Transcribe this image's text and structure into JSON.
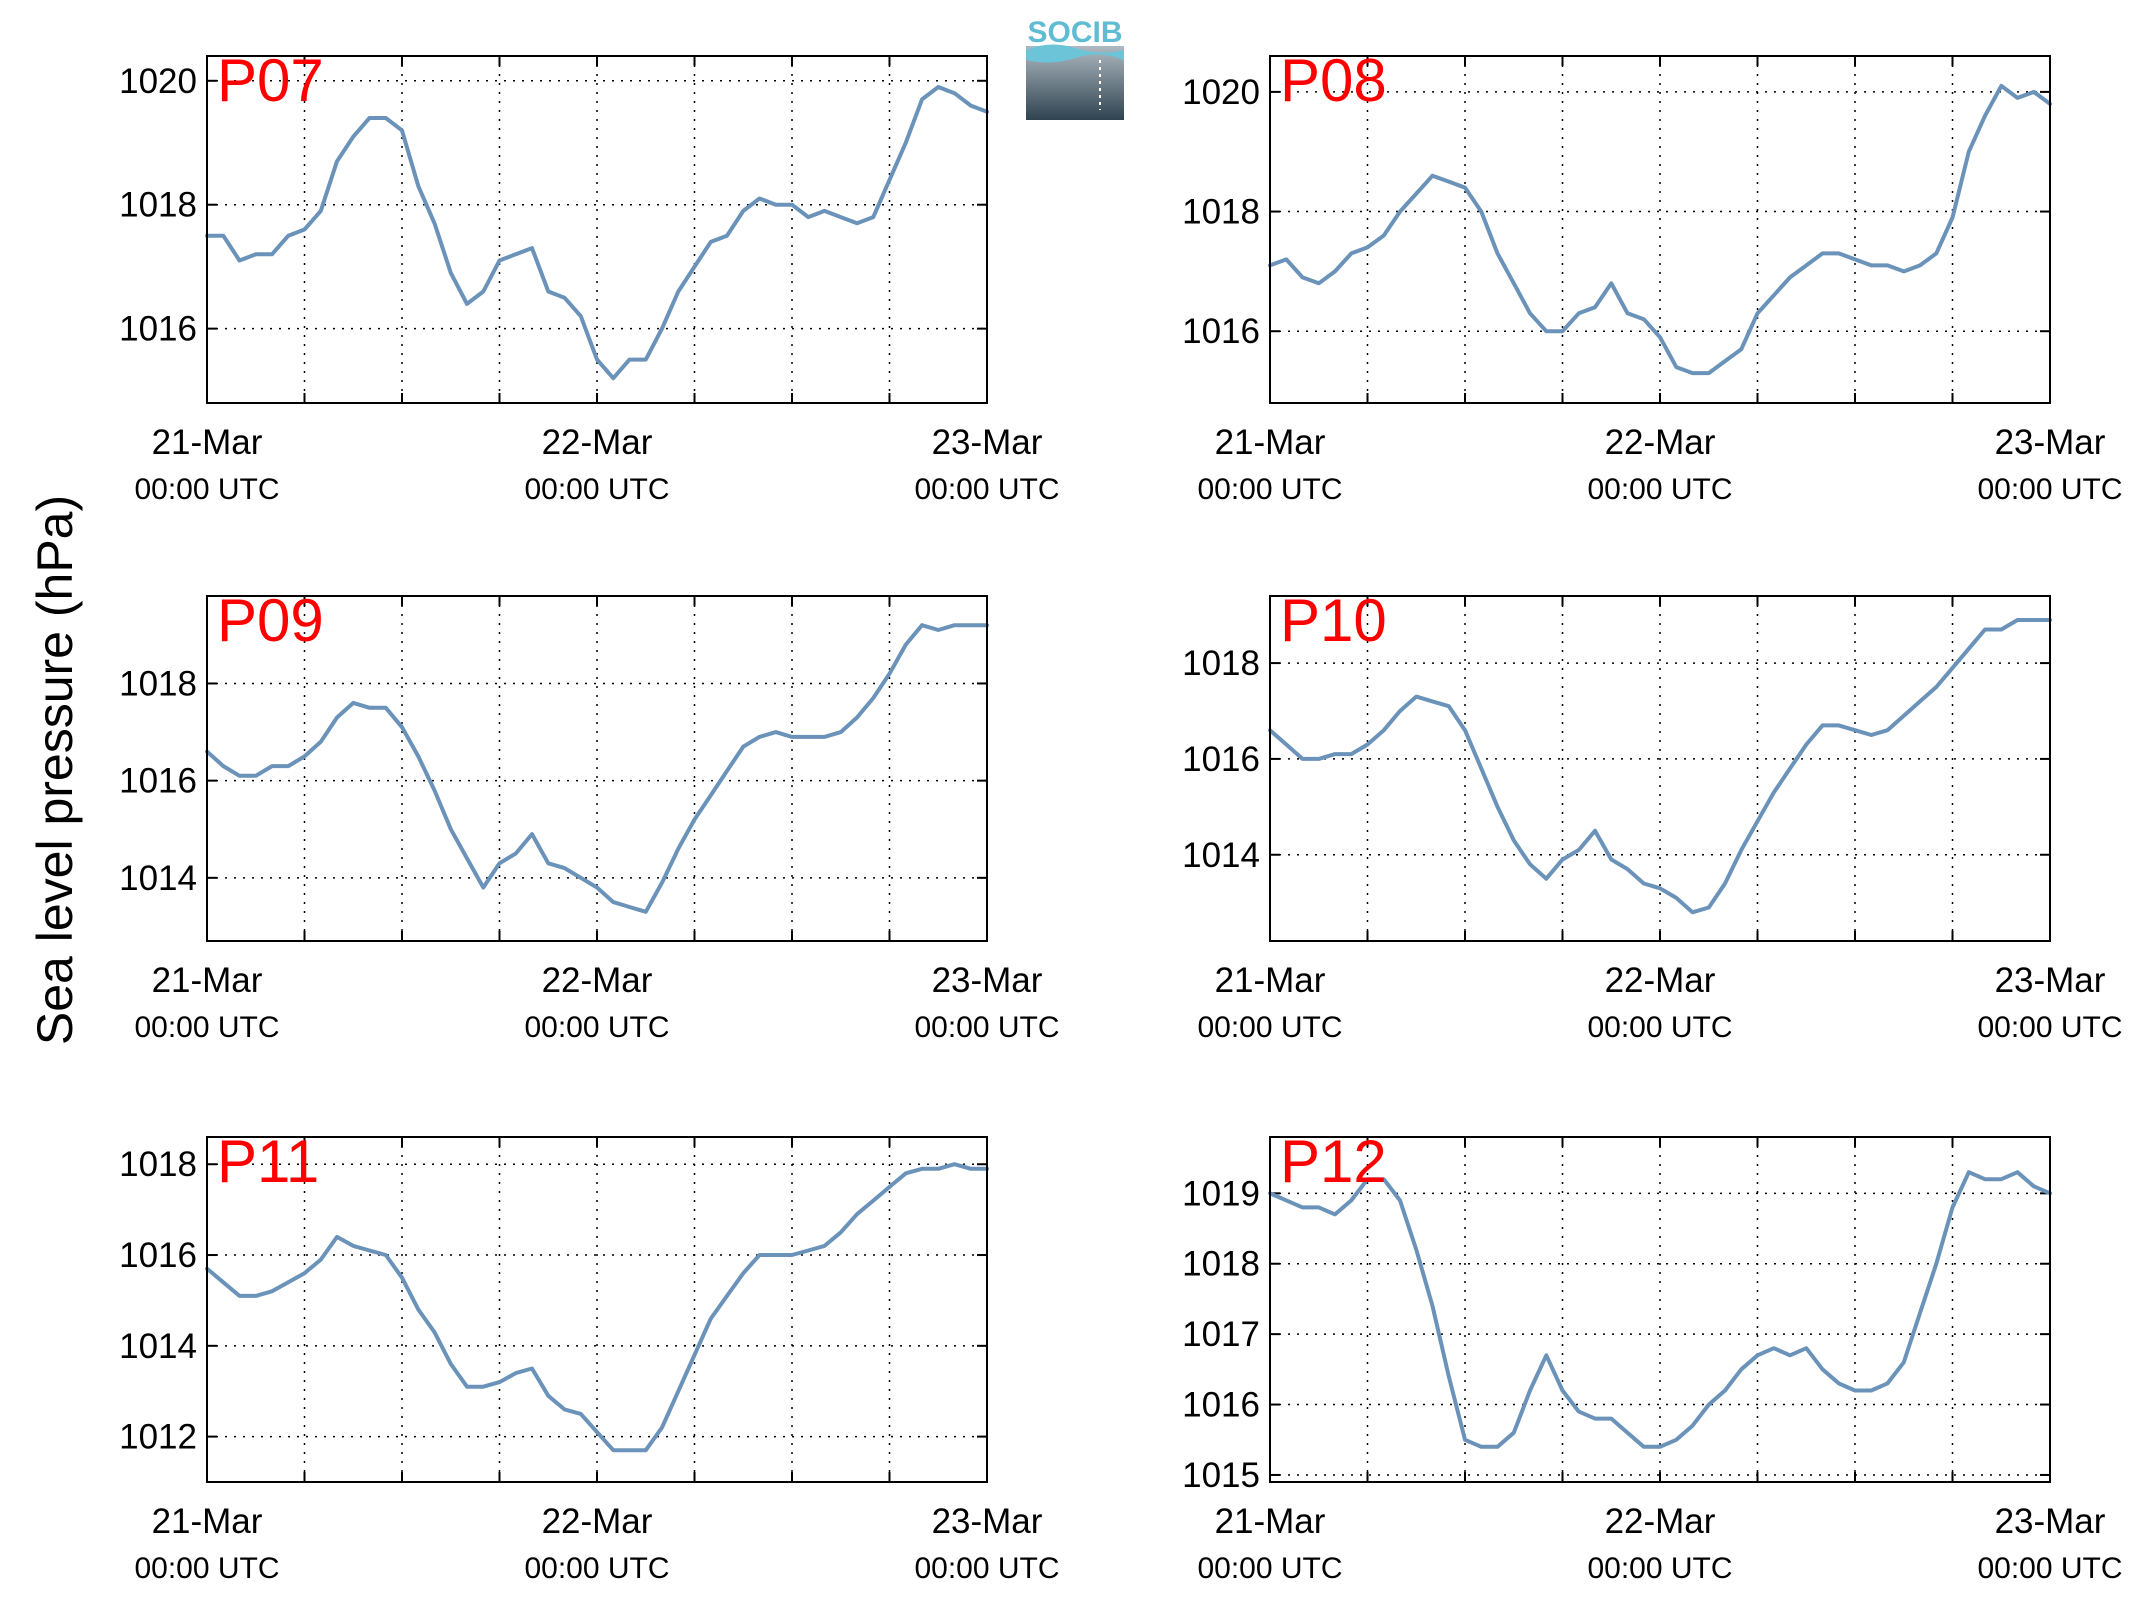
{
  "ylabel": "Sea level pressure (hPa)",
  "logo": {
    "text": "SOCIB"
  },
  "colors": {
    "line": "#6b93b9",
    "station_label": "#ff0000"
  },
  "chart_data": [
    {
      "type": "line",
      "station": "P07",
      "xlabel": "",
      "ylabel": "",
      "x_range": [
        "2020-03-21T00:00",
        "2020-03-23T00:00"
      ],
      "x_ticks": [
        {
          "date": "21-Mar",
          "time": "00:00 UTC"
        },
        {
          "date": "22-Mar",
          "time": "00:00 UTC"
        },
        {
          "date": "23-Mar",
          "time": "00:00 UTC"
        }
      ],
      "ylim": [
        1014.8,
        1020.4
      ],
      "yticks": [
        1016,
        1018,
        1020
      ],
      "grid": true,
      "series": [
        {
          "x_hours": [
            0,
            1,
            2,
            3,
            4,
            5,
            6,
            7,
            8,
            9,
            10,
            11,
            12,
            13,
            14,
            15,
            16,
            17,
            18,
            19,
            20,
            21,
            22,
            23,
            24,
            25,
            26,
            27,
            28,
            29,
            30,
            31,
            32,
            33,
            34,
            35,
            36,
            37,
            38,
            39,
            40,
            41,
            42,
            43,
            44,
            45,
            46,
            47,
            48
          ],
          "values": [
            1017.5,
            1017.5,
            1017.1,
            1017.2,
            1017.2,
            1017.5,
            1017.6,
            1017.9,
            1018.7,
            1019.1,
            1019.4,
            1019.4,
            1019.2,
            1018.3,
            1017.7,
            1016.9,
            1016.4,
            1016.6,
            1017.1,
            1017.2,
            1017.3,
            1016.6,
            1016.5,
            1016.2,
            1015.5,
            1015.2,
            1015.5,
            1015.5,
            1016.0,
            1016.6,
            1017.0,
            1017.4,
            1017.5,
            1017.9,
            1018.1,
            1018.0,
            1018.0,
            1017.8,
            1017.9,
            1017.8,
            1017.7,
            1017.8,
            1018.4,
            1019.0,
            1019.7,
            1019.9,
            1019.8,
            1019.6,
            1019.5
          ]
        }
      ]
    },
    {
      "type": "line",
      "station": "P08",
      "xlabel": "",
      "ylabel": "",
      "x_range": [
        "2020-03-21T00:00",
        "2020-03-23T00:00"
      ],
      "x_ticks": [
        {
          "date": "21-Mar",
          "time": "00:00 UTC"
        },
        {
          "date": "22-Mar",
          "time": "00:00 UTC"
        },
        {
          "date": "23-Mar",
          "time": "00:00 UTC"
        }
      ],
      "ylim": [
        1014.8,
        1020.6
      ],
      "yticks": [
        1016,
        1018,
        1020
      ],
      "grid": true,
      "series": [
        {
          "x_hours": [
            0,
            1,
            2,
            3,
            4,
            5,
            6,
            7,
            8,
            9,
            10,
            11,
            12,
            13,
            14,
            15,
            16,
            17,
            18,
            19,
            20,
            21,
            22,
            23,
            24,
            25,
            26,
            27,
            28,
            29,
            30,
            31,
            32,
            33,
            34,
            35,
            36,
            37,
            38,
            39,
            40,
            41,
            42,
            43,
            44,
            45,
            46,
            47,
            48
          ],
          "values": [
            1017.1,
            1017.2,
            1016.9,
            1016.8,
            1017.0,
            1017.3,
            1017.4,
            1017.6,
            1018.0,
            1018.3,
            1018.6,
            1018.5,
            1018.4,
            1018.0,
            1017.3,
            1016.8,
            1016.3,
            1016.0,
            1016.0,
            1016.3,
            1016.4,
            1016.8,
            1016.3,
            1016.2,
            1015.9,
            1015.4,
            1015.3,
            1015.3,
            1015.5,
            1015.7,
            1016.3,
            1016.6,
            1016.9,
            1017.1,
            1017.3,
            1017.3,
            1017.2,
            1017.1,
            1017.1,
            1017.0,
            1017.1,
            1017.3,
            1017.9,
            1019.0,
            1019.6,
            1020.1,
            1019.9,
            1020.0,
            1019.8
          ]
        }
      ]
    },
    {
      "type": "line",
      "station": "P09",
      "xlabel": "",
      "ylabel": "",
      "x_range": [
        "2020-03-21T00:00",
        "2020-03-23T00:00"
      ],
      "x_ticks": [
        {
          "date": "21-Mar",
          "time": "00:00 UTC"
        },
        {
          "date": "22-Mar",
          "time": "00:00 UTC"
        },
        {
          "date": "23-Mar",
          "time": "00:00 UTC"
        }
      ],
      "ylim": [
        1012.7,
        1019.8
      ],
      "yticks": [
        1014,
        1016,
        1018
      ],
      "grid": true,
      "series": [
        {
          "x_hours": [
            0,
            1,
            2,
            3,
            4,
            5,
            6,
            7,
            8,
            9,
            10,
            11,
            12,
            13,
            14,
            15,
            16,
            17,
            18,
            19,
            20,
            21,
            22,
            23,
            24,
            25,
            26,
            27,
            28,
            29,
            30,
            31,
            32,
            33,
            34,
            35,
            36,
            37,
            38,
            39,
            40,
            41,
            42,
            43,
            44,
            45,
            46,
            47,
            48
          ],
          "values": [
            1016.6,
            1016.3,
            1016.1,
            1016.1,
            1016.3,
            1016.3,
            1016.5,
            1016.8,
            1017.3,
            1017.6,
            1017.5,
            1017.5,
            1017.1,
            1016.5,
            1015.8,
            1015.0,
            1014.4,
            1013.8,
            1014.3,
            1014.5,
            1014.9,
            1014.3,
            1014.2,
            1014.0,
            1013.8,
            1013.5,
            1013.4,
            1013.3,
            1013.9,
            1014.6,
            1015.2,
            1015.7,
            1016.2,
            1016.7,
            1016.9,
            1017.0,
            1016.9,
            1016.9,
            1016.9,
            1017.0,
            1017.3,
            1017.7,
            1018.2,
            1018.8,
            1019.2,
            1019.1,
            1019.2,
            1019.2,
            1019.2
          ]
        }
      ]
    },
    {
      "type": "line",
      "station": "P10",
      "xlabel": "",
      "ylabel": "",
      "x_range": [
        "2020-03-21T00:00",
        "2020-03-23T00:00"
      ],
      "x_ticks": [
        {
          "date": "21-Mar",
          "time": "00:00 UTC"
        },
        {
          "date": "22-Mar",
          "time": "00:00 UTC"
        },
        {
          "date": "23-Mar",
          "time": "00:00 UTC"
        }
      ],
      "ylim": [
        1012.2,
        1019.4
      ],
      "yticks": [
        1014,
        1016,
        1018
      ],
      "grid": true,
      "series": [
        {
          "x_hours": [
            0,
            1,
            2,
            3,
            4,
            5,
            6,
            7,
            8,
            9,
            10,
            11,
            12,
            13,
            14,
            15,
            16,
            17,
            18,
            19,
            20,
            21,
            22,
            23,
            24,
            25,
            26,
            27,
            28,
            29,
            30,
            31,
            32,
            33,
            34,
            35,
            36,
            37,
            38,
            39,
            40,
            41,
            42,
            43,
            44,
            45,
            46,
            47,
            48
          ],
          "values": [
            1016.6,
            1016.3,
            1016.0,
            1016.0,
            1016.1,
            1016.1,
            1016.3,
            1016.6,
            1017.0,
            1017.3,
            1017.2,
            1017.1,
            1016.6,
            1015.8,
            1015.0,
            1014.3,
            1013.8,
            1013.5,
            1013.9,
            1014.1,
            1014.5,
            1013.9,
            1013.7,
            1013.4,
            1013.3,
            1013.1,
            1012.8,
            1012.9,
            1013.4,
            1014.1,
            1014.7,
            1015.3,
            1015.8,
            1016.3,
            1016.7,
            1016.7,
            1016.6,
            1016.5,
            1016.6,
            1016.9,
            1017.2,
            1017.5,
            1017.9,
            1018.3,
            1018.7,
            1018.7,
            1018.9,
            1018.9,
            1018.9
          ]
        }
      ]
    },
    {
      "type": "line",
      "station": "P11",
      "xlabel": "",
      "ylabel": "",
      "x_range": [
        "2020-03-21T00:00",
        "2020-03-23T00:00"
      ],
      "x_ticks": [
        {
          "date": "21-Mar",
          "time": "00:00 UTC"
        },
        {
          "date": "22-Mar",
          "time": "00:00 UTC"
        },
        {
          "date": "23-Mar",
          "time": "00:00 UTC"
        }
      ],
      "ylim": [
        1011.0,
        1018.6
      ],
      "yticks": [
        1012,
        1014,
        1016,
        1018
      ],
      "grid": true,
      "series": [
        {
          "x_hours": [
            0,
            1,
            2,
            3,
            4,
            5,
            6,
            7,
            8,
            9,
            10,
            11,
            12,
            13,
            14,
            15,
            16,
            17,
            18,
            19,
            20,
            21,
            22,
            23,
            24,
            25,
            26,
            27,
            28,
            29,
            30,
            31,
            32,
            33,
            34,
            35,
            36,
            37,
            38,
            39,
            40,
            41,
            42,
            43,
            44,
            45,
            46,
            47,
            48
          ],
          "values": [
            1015.7,
            1015.4,
            1015.1,
            1015.1,
            1015.2,
            1015.4,
            1015.6,
            1015.9,
            1016.4,
            1016.2,
            1016.1,
            1016.0,
            1015.5,
            1014.8,
            1014.3,
            1013.6,
            1013.1,
            1013.1,
            1013.2,
            1013.4,
            1013.5,
            1012.9,
            1012.6,
            1012.5,
            1012.1,
            1011.7,
            1011.7,
            1011.7,
            1012.2,
            1013.0,
            1013.8,
            1014.6,
            1015.1,
            1015.6,
            1016.0,
            1016.0,
            1016.0,
            1016.1,
            1016.2,
            1016.5,
            1016.9,
            1017.2,
            1017.5,
            1017.8,
            1017.9,
            1017.9,
            1018.0,
            1017.9,
            1017.9
          ]
        }
      ]
    },
    {
      "type": "line",
      "station": "P12",
      "xlabel": "",
      "ylabel": "",
      "x_range": [
        "2020-03-21T00:00",
        "2020-03-23T00:00"
      ],
      "x_ticks": [
        {
          "date": "21-Mar",
          "time": "00:00 UTC"
        },
        {
          "date": "22-Mar",
          "time": "00:00 UTC"
        },
        {
          "date": "23-Mar",
          "time": "00:00 UTC"
        }
      ],
      "ylim": [
        1014.9,
        1019.8
      ],
      "yticks": [
        1015,
        1016,
        1017,
        1018,
        1019
      ],
      "grid": true,
      "series": [
        {
          "x_hours": [
            0,
            1,
            2,
            3,
            4,
            5,
            6,
            7,
            8,
            9,
            10,
            11,
            12,
            13,
            14,
            15,
            16,
            17,
            18,
            19,
            20,
            21,
            22,
            23,
            24,
            25,
            26,
            27,
            28,
            29,
            30,
            31,
            32,
            33,
            34,
            35,
            36,
            37,
            38,
            39,
            40,
            41,
            42,
            43,
            44,
            45,
            46,
            47,
            48
          ],
          "values": [
            1019.0,
            1018.9,
            1018.8,
            1018.8,
            1018.7,
            1018.9,
            1019.2,
            1019.2,
            1018.9,
            1018.2,
            1017.4,
            1016.4,
            1015.5,
            1015.4,
            1015.4,
            1015.6,
            1016.2,
            1016.7,
            1016.2,
            1015.9,
            1015.8,
            1015.8,
            1015.6,
            1015.4,
            1015.4,
            1015.5,
            1015.7,
            1016.0,
            1016.2,
            1016.5,
            1016.7,
            1016.8,
            1016.7,
            1016.8,
            1016.5,
            1016.3,
            1016.2,
            1016.2,
            1016.3,
            1016.6,
            1017.3,
            1018.0,
            1018.8,
            1019.3,
            1019.2,
            1019.2,
            1019.3,
            1019.1,
            1019.0
          ]
        }
      ]
    }
  ]
}
